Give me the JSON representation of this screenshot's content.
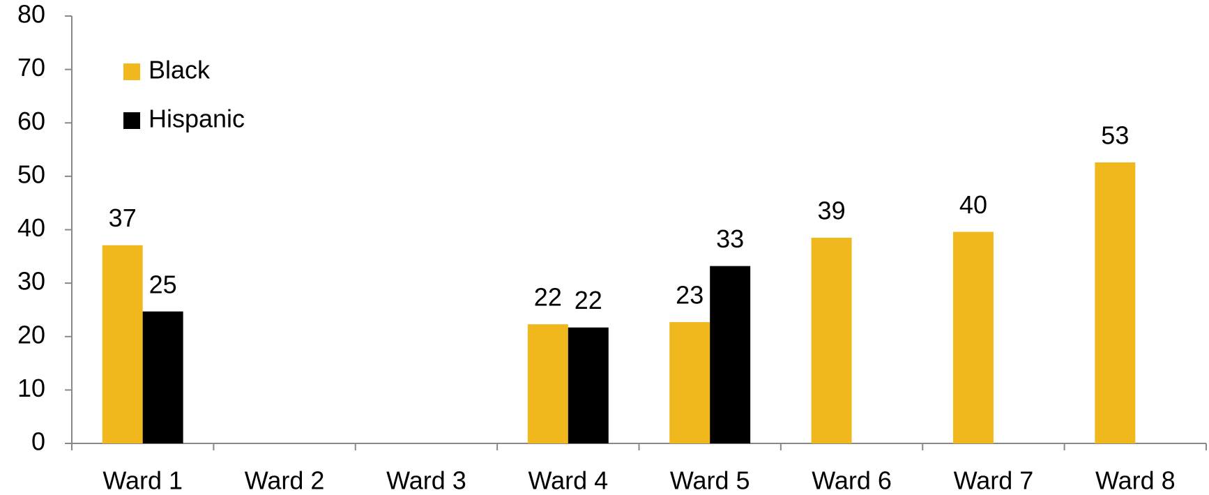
{
  "chart_data": {
    "type": "bar",
    "categories": [
      "Ward 1",
      "Ward 2",
      "Ward 3",
      "Ward 4",
      "Ward 5",
      "Ward 6",
      "Ward 7",
      "Ward 8"
    ],
    "series": [
      {
        "name": "Black",
        "color": "#f0b81c",
        "values": [
          37.1,
          null,
          null,
          22.3,
          22.7,
          38.5,
          39.6,
          52.6
        ],
        "value_labels": [
          "37",
          null,
          null,
          "22",
          "23",
          "39",
          "40",
          "53"
        ]
      },
      {
        "name": "Hispanic",
        "color": "#000000",
        "values": [
          24.7,
          null,
          null,
          21.7,
          33.2,
          null,
          null,
          null
        ],
        "value_labels": [
          "25",
          null,
          null,
          "22",
          "33",
          null,
          null,
          null
        ]
      }
    ],
    "ylim": [
      0,
      80
    ],
    "yticks": [
      0,
      10,
      20,
      30,
      40,
      50,
      60,
      70,
      80
    ],
    "grid": false,
    "legend": "top-left"
  }
}
